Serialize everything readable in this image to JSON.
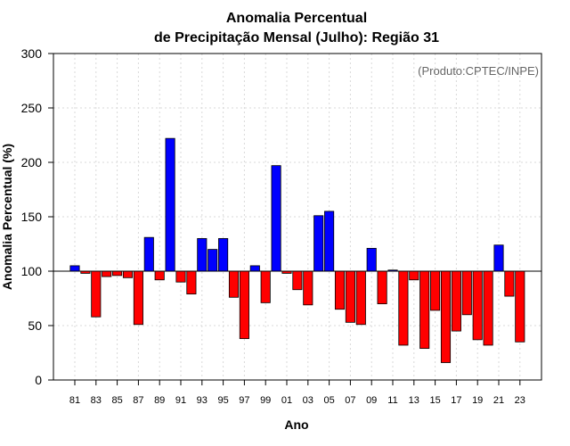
{
  "chart_data": {
    "type": "bar",
    "title_line1": "Anomalia Percentual",
    "title_line2": "de Precipitação Mensal (Julho): Região 31",
    "credit": "(Produto:CPTEC/INPE)",
    "xlabel": "Ano",
    "ylabel": "Anomalia Percentual (%)",
    "ylim": [
      0,
      300
    ],
    "yticks": [
      0,
      50,
      100,
      150,
      200,
      250,
      300
    ],
    "baseline": 100,
    "grid": true,
    "colors": {
      "above": "#0000ff",
      "below": "#ff0000",
      "edge": "#000000",
      "baseline": "#000000"
    },
    "categories": [
      "81",
      "82",
      "83",
      "84",
      "85",
      "86",
      "87",
      "88",
      "89",
      "90",
      "91",
      "92",
      "93",
      "94",
      "95",
      "96",
      "97",
      "98",
      "99",
      "00",
      "01",
      "02",
      "03",
      "04",
      "05",
      "06",
      "07",
      "08",
      "09",
      "10",
      "11",
      "12",
      "13",
      "14",
      "15",
      "16",
      "17",
      "18",
      "19",
      "20",
      "21",
      "22",
      "23"
    ],
    "tick_labels": [
      "81",
      "83",
      "85",
      "87",
      "89",
      "91",
      "93",
      "95",
      "97",
      "99",
      "01",
      "03",
      "05",
      "07",
      "09",
      "11",
      "13",
      "15",
      "17",
      "19",
      "21",
      "23"
    ],
    "values": [
      105,
      98,
      58,
      95,
      96,
      94,
      51,
      131,
      92,
      222,
      90,
      79,
      130,
      120,
      130,
      76,
      38,
      105,
      71,
      197,
      98,
      83,
      69,
      151,
      155,
      65,
      53,
      51,
      121,
      70,
      101,
      32,
      92,
      29,
      64,
      16,
      45,
      60,
      37,
      32,
      124,
      77,
      35
    ]
  }
}
